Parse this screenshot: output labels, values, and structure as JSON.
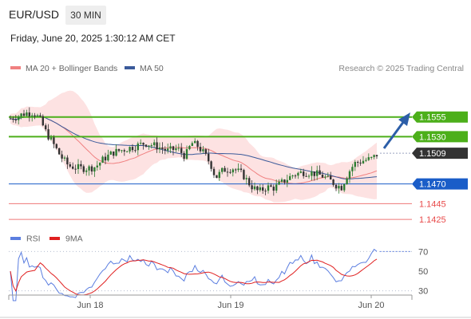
{
  "header": {
    "symbol": "EUR/USD",
    "timeframe": "30 MIN",
    "datetime": "Friday, June 20, 2025 1:30:12 AM CET"
  },
  "legend": {
    "ma20_label": "MA 20 + Bollinger Bands",
    "ma50_label": "MA 50",
    "copyright": "Research © 2025 Trading Central"
  },
  "colors": {
    "ma20": "#f08080",
    "bollinger_fill": "#fde2e2",
    "ma50": "#3a5a9a",
    "resistance": "#4caf1a",
    "current": "#333333",
    "support_pivot": "#1a5dc8",
    "support": "#e84a4a",
    "rsi": "#5b7ee0",
    "rsi_ma": "#e02020",
    "arrow": "#2c5ea8",
    "candle_up": "#2e7d32",
    "candle_down": "#333333"
  },
  "levels": [
    {
      "label": "1.1555",
      "value": 1.1555,
      "type": "resistance"
    },
    {
      "label": "1.1530",
      "value": 1.153,
      "type": "resistance"
    },
    {
      "label": "1.1509",
      "value": 1.1509,
      "type": "current"
    },
    {
      "label": "1.1470",
      "value": 1.147,
      "type": "pivot"
    },
    {
      "label": "1.1445",
      "value": 1.1445,
      "type": "support"
    },
    {
      "label": "1.1425",
      "value": 1.1425,
      "type": "support"
    }
  ],
  "rsi_panel": {
    "rsi_label": "RSI",
    "ma_label": "9MA",
    "ticks": [
      "70",
      "50",
      "30"
    ],
    "tick_values": [
      70,
      50,
      30
    ]
  },
  "x_axis": {
    "labels": [
      "Jun 18",
      "Jun 19",
      "Jun 20"
    ]
  },
  "chart_data": {
    "type": "candlestick",
    "price_range": [
      1.1415,
      1.158
    ],
    "rsi_range": [
      20,
      80
    ],
    "x_labels": [
      "Jun 18",
      "Jun 19",
      "Jun 20"
    ],
    "projection": {
      "direction": "up",
      "target": 1.1555
    }
  }
}
